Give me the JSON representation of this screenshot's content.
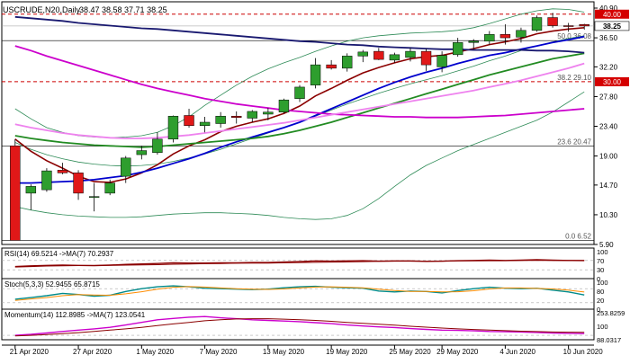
{
  "colors": {
    "bull": "#2e9e2e",
    "bear": "#e01818",
    "ma_fast": "#8b0000",
    "ma_blue": "#0000cd",
    "ma_green": "#228b22",
    "ma_navy": "#191970",
    "ma_magenta": "#cc00cc",
    "ma_violet": "#ee82ee",
    "bollinger": "#2e8b57",
    "level_line": "#cc0000",
    "fib_line": "#000000",
    "price_tag": "#d40000",
    "rsi": "#8b0000",
    "stoch_main": "#008b8b",
    "stoch_signal": "#ff8c00",
    "momentum": "#cc00cc",
    "momentum_ma": "#8b0000"
  },
  "chart_data": {
    "type": "candlestick",
    "title": "USCRUDE,N20,Daily",
    "ohlc_header": "38.47 38.58 37.71 38.25",
    "ylim": [
      5.9,
      41.3
    ],
    "y_ticks": [
      "40.90",
      "36.50",
      "32.20",
      "27.80",
      "23.40",
      "19.00",
      "14.70",
      "10.30",
      "5.90"
    ],
    "x_labels": [
      "21 Apr 2020",
      "27 Apr 2020",
      "1 May 2020",
      "7 May 2020",
      "13 May 2020",
      "19 May 2020",
      "25 May 2020",
      "29 May 2020",
      "4 Jun 2020",
      "10 Jun 2020"
    ],
    "x_label_bars": [
      0,
      4,
      8,
      12,
      16,
      20,
      24,
      27,
      31,
      35
    ],
    "candles": [
      {
        "o": 20.5,
        "h": 21.5,
        "l": 6.5,
        "c": 6.5
      },
      {
        "o": 13.5,
        "h": 14.8,
        "l": 11.0,
        "c": 14.5
      },
      {
        "o": 14.0,
        "h": 17.2,
        "l": 13.7,
        "c": 16.8
      },
      {
        "o": 16.9,
        "h": 18.0,
        "l": 16.3,
        "c": 16.5
      },
      {
        "o": 16.5,
        "h": 16.9,
        "l": 12.5,
        "c": 13.5
      },
      {
        "o": 13.0,
        "h": 15.0,
        "l": 10.8,
        "c": 13.0
      },
      {
        "o": 13.5,
        "h": 15.5,
        "l": 13.2,
        "c": 15.0
      },
      {
        "o": 16.0,
        "h": 19.0,
        "l": 15.0,
        "c": 18.7
      },
      {
        "o": 19.2,
        "h": 20.5,
        "l": 18.5,
        "c": 19.8
      },
      {
        "o": 19.5,
        "h": 22.5,
        "l": 19.2,
        "c": 21.5
      },
      {
        "o": 21.5,
        "h": 25.0,
        "l": 21.0,
        "c": 24.9
      },
      {
        "o": 25.0,
        "h": 26.0,
        "l": 23.2,
        "c": 23.5
      },
      {
        "o": 23.5,
        "h": 24.8,
        "l": 22.5,
        "c": 24.0
      },
      {
        "o": 23.8,
        "h": 25.5,
        "l": 23.2,
        "c": 24.9
      },
      {
        "o": 24.9,
        "h": 25.6,
        "l": 23.8,
        "c": 24.7
      },
      {
        "o": 24.6,
        "h": 25.8,
        "l": 24.0,
        "c": 25.6
      },
      {
        "o": 25.2,
        "h": 26.1,
        "l": 24.3,
        "c": 25.5
      },
      {
        "o": 25.5,
        "h": 27.5,
        "l": 25.3,
        "c": 27.3
      },
      {
        "o": 27.5,
        "h": 29.5,
        "l": 27.0,
        "c": 29.2
      },
      {
        "o": 29.5,
        "h": 33.5,
        "l": 29.0,
        "c": 32.5
      },
      {
        "o": 32.5,
        "h": 33.2,
        "l": 31.8,
        "c": 32.0
      },
      {
        "o": 32.0,
        "h": 34.2,
        "l": 31.5,
        "c": 33.8
      },
      {
        "o": 33.8,
        "h": 34.7,
        "l": 32.9,
        "c": 34.4
      },
      {
        "o": 34.5,
        "h": 35.0,
        "l": 33.2,
        "c": 33.3
      },
      {
        "o": 33.2,
        "h": 34.3,
        "l": 32.8,
        "c": 34.0
      },
      {
        "o": 33.6,
        "h": 35.0,
        "l": 33.0,
        "c": 34.5
      },
      {
        "o": 34.5,
        "h": 34.9,
        "l": 31.6,
        "c": 32.5
      },
      {
        "o": 32.2,
        "h": 34.5,
        "l": 31.4,
        "c": 33.9
      },
      {
        "o": 34.0,
        "h": 36.5,
        "l": 33.7,
        "c": 35.8
      },
      {
        "o": 35.8,
        "h": 36.3,
        "l": 34.8,
        "c": 36.0
      },
      {
        "o": 36.0,
        "h": 37.5,
        "l": 35.5,
        "c": 37.0
      },
      {
        "o": 37.0,
        "h": 38.5,
        "l": 35.5,
        "c": 36.5
      },
      {
        "o": 36.6,
        "h": 38.0,
        "l": 35.8,
        "c": 37.6
      },
      {
        "o": 37.6,
        "h": 39.8,
        "l": 37.4,
        "c": 39.5
      },
      {
        "o": 39.5,
        "h": 40.2,
        "l": 38.0,
        "c": 38.3
      },
      {
        "o": 38.3,
        "h": 38.7,
        "l": 37.4,
        "c": 38.2
      },
      {
        "o": 38.47,
        "h": 38.58,
        "l": 37.71,
        "c": 38.25
      }
    ],
    "moving_averages": [
      {
        "color": "ma_fast",
        "values": [
          21.5,
          19.7,
          18.3,
          17.2,
          16.0,
          15.2,
          15.1,
          15.6,
          16.5,
          17.7,
          19.3,
          20.5,
          21.4,
          22.6,
          23.4,
          24.0,
          24.5,
          25.3,
          26.4,
          27.9,
          29.0,
          30.2,
          31.3,
          32.1,
          32.8,
          33.4,
          33.7,
          33.9,
          34.4,
          34.9,
          35.5,
          35.9,
          36.4,
          37.1,
          37.5,
          37.8,
          38.0
        ]
      },
      {
        "color": "ma_blue",
        "values": [
          15.0,
          15.0,
          15.1,
          15.2,
          15.3,
          15.5,
          15.8,
          16.1,
          16.6,
          17.2,
          17.9,
          18.6,
          19.4,
          20.3,
          21.1,
          21.8,
          22.5,
          23.2,
          24.0,
          25.0,
          26.0,
          27.0,
          28.0,
          29.0,
          29.9,
          30.7,
          31.4,
          32.0,
          32.7,
          33.3,
          33.9,
          34.3,
          34.8,
          35.3,
          35.8,
          36.2,
          36.7
        ]
      },
      {
        "color": "ma_green",
        "values": [
          22.0,
          21.6,
          21.3,
          21.0,
          20.8,
          20.6,
          20.5,
          20.4,
          20.3,
          20.4,
          20.6,
          20.8,
          21.0,
          21.2,
          21.4,
          21.6,
          21.9,
          22.3,
          22.8,
          23.4,
          24.0,
          24.7,
          25.4,
          26.1,
          26.8,
          27.5,
          28.2,
          28.9,
          29.6,
          30.3,
          31.0,
          31.6,
          32.2,
          32.8,
          33.4,
          33.8,
          34.2
        ]
      },
      {
        "color": "ma_navy",
        "values": [
          39.6,
          39.4,
          39.2,
          39.0,
          38.7,
          38.5,
          38.3,
          38.1,
          37.9,
          37.8,
          37.6,
          37.4,
          37.2,
          37.0,
          36.8,
          36.6,
          36.4,
          36.2,
          36.0,
          35.9,
          35.7,
          35.5,
          35.4,
          35.2,
          35.1,
          35.0,
          34.9,
          34.8,
          34.8,
          34.7,
          34.7,
          34.7,
          34.7,
          34.6,
          34.6,
          34.5,
          34.3
        ]
      },
      {
        "color": "ma_magenta",
        "values": [
          35.3,
          34.6,
          33.8,
          33.1,
          32.4,
          31.7,
          31.0,
          30.3,
          29.6,
          29.0,
          28.5,
          28.0,
          27.5,
          27.1,
          26.7,
          26.4,
          26.1,
          25.8,
          25.6,
          25.4,
          25.2,
          25.1,
          25.0,
          24.9,
          24.8,
          24.8,
          24.7,
          24.7,
          24.7,
          24.8,
          24.9,
          25.0,
          25.2,
          25.4,
          25.6,
          25.8,
          26.0
        ]
      },
      {
        "color": "ma_violet",
        "values": [
          23.7,
          23.2,
          22.8,
          22.4,
          22.1,
          21.9,
          21.7,
          21.6,
          21.6,
          21.7,
          21.9,
          22.1,
          22.4,
          22.7,
          23.0,
          23.3,
          23.6,
          23.9,
          24.3,
          24.7,
          25.1,
          25.5,
          25.9,
          26.3,
          26.7,
          27.1,
          27.5,
          27.9,
          28.3,
          28.7,
          29.2,
          29.7,
          30.2,
          30.8,
          31.4,
          32.0,
          32.7
        ]
      }
    ],
    "bollinger": {
      "upper": [
        26.0,
        24.5,
        23.2,
        22.5,
        22.0,
        21.8,
        21.7,
        21.8,
        22.0,
        22.5,
        23.5,
        24.8,
        26.5,
        28.0,
        29.5,
        30.8,
        31.9,
        32.8,
        33.6,
        34.5,
        35.3,
        36.0,
        36.5,
        36.8,
        37.0,
        37.2,
        37.3,
        37.4,
        37.6,
        38.0,
        38.6,
        39.3,
        40.0,
        40.5,
        40.8,
        40.7,
        40.3
      ],
      "middle": [
        21.0,
        20.0,
        19.2,
        18.6,
        18.1,
        17.8,
        17.6,
        17.5,
        17.6,
        17.8,
        18.2,
        18.7,
        19.3,
        20.0,
        20.8,
        21.6,
        22.4,
        23.2,
        24.0,
        24.9,
        25.8,
        26.7,
        27.5,
        28.3,
        29.0,
        29.7,
        30.3,
        30.9,
        31.6,
        32.3,
        33.1,
        33.8,
        34.6,
        35.3,
        35.9,
        36.4,
        36.8
      ],
      "lower": [
        11.5,
        11.0,
        10.6,
        10.3,
        10.1,
        10.0,
        9.9,
        9.9,
        10.0,
        10.2,
        10.4,
        10.5,
        10.6,
        10.6,
        10.5,
        10.4,
        10.2,
        9.9,
        9.7,
        9.6,
        9.7,
        10.2,
        11.2,
        12.7,
        14.5,
        16.2,
        17.6,
        18.7,
        19.8,
        20.7,
        21.6,
        22.5,
        23.4,
        24.3,
        25.5,
        27.0,
        28.5
      ]
    },
    "levels": [
      {
        "name": "level-40",
        "value": 40.0,
        "style": "dashed",
        "label": "",
        "price_tag": "40.00"
      },
      {
        "name": "level-fib50",
        "value": 36.08,
        "style": "solid",
        "label": "50.0 36.08",
        "price_tag": ""
      },
      {
        "name": "level-30",
        "value": 30.0,
        "style": "dashed",
        "label": "38.2 29.10",
        "price_tag": "30.00"
      },
      {
        "name": "level-fib236",
        "value": 20.47,
        "style": "solid",
        "label": "23.6 20.47",
        "price_tag": ""
      },
      {
        "name": "level-fib0",
        "value": 6.52,
        "style": "solid",
        "label": "0.0 6.52",
        "price_tag": ""
      }
    ],
    "current_price": "38.25",
    "indicators": [
      {
        "name": "rsi",
        "label": "RSI(14) 69.5214  ->MA(7) 70.2937",
        "scale_labels": [
          "100",
          "70",
          "30",
          "0"
        ],
        "ylim": [
          0,
          100
        ],
        "guides": [
          70,
          30
        ],
        "series": [
          {
            "color": "rsi",
            "values": [
              44,
              47,
              49,
              50,
              49,
              48,
              50,
              53,
              55,
              57,
              60,
              59,
              59,
              60,
              60,
              61,
              61,
              63,
              65,
              68,
              67,
              68,
              69,
              67,
              68,
              68,
              66,
              67,
              69,
              70,
              71,
              70,
              71,
              73,
              71,
              70,
              69.5
            ]
          },
          {
            "color": "rsi",
            "values": [
              42,
              44,
              46,
              47,
              48,
              48,
              49,
              50,
              51,
              52,
              54,
              55,
              56,
              57,
              58,
              59,
              59,
              60,
              61,
              62,
              63,
              64,
              65,
              66,
              67,
              67,
              67,
              67,
              68,
              68,
              69,
              69,
              70,
              70,
              70,
              70,
              70.3
            ]
          }
        ]
      },
      {
        "name": "stochastic",
        "label": "Stoch(5,3,3) 52.9455 65.8715",
        "scale_labels": [
          "100",
          "80",
          "20",
          "0"
        ],
        "ylim": [
          0,
          100
        ],
        "guides": [
          80,
          20
        ],
        "series": [
          {
            "color": "stoch_main",
            "values": [
              35,
              42,
              50,
              60,
              55,
              48,
              52,
              68,
              80,
              88,
              92,
              88,
              82,
              80,
              78,
              76,
              78,
              84,
              88,
              90,
              86,
              84,
              82,
              70,
              66,
              70,
              68,
              62,
              72,
              80,
              86,
              82,
              80,
              82,
              74,
              66,
              52.9
            ]
          },
          {
            "color": "stoch_signal",
            "values": [
              30,
              36,
              42,
              50,
              55,
              53,
              52,
              58,
              67,
              78,
              86,
              89,
              87,
              83,
              80,
              78,
              77,
              79,
              83,
              87,
              88,
              86,
              84,
              78,
              72,
              68,
              68,
              66,
              67,
              71,
              79,
              83,
              83,
              81,
              79,
              74,
              65.9
            ]
          }
        ]
      },
      {
        "name": "momentum",
        "label": "Momentum(14) 112.8985  ->MA(7) 123.0541",
        "scale_labels": [
          "253.8259",
          "100",
          "88.0317"
        ],
        "ylim": [
          80,
          260
        ],
        "guides": [
          100
        ],
        "series": [
          {
            "color": "momentum",
            "values": [
              100,
              108,
              118,
              130,
              140,
              150,
              162,
              180,
              200,
              220,
              230,
              240,
              245,
              235,
              228,
              220,
              215,
              210,
              205,
              198,
              190,
              180,
              172,
              165,
              160,
              152,
              146,
              140,
              138,
              135,
              130,
              128,
              126,
              122,
              118,
              115,
              112.9
            ]
          },
          {
            "color": "momentum_ma",
            "values": [
              95,
              100,
              106,
              113,
              121,
              130,
              140,
              150,
              162,
              175,
              188,
              200,
              212,
              220,
              226,
              228,
              228,
              225,
              220,
              215,
              208,
              200,
              193,
              186,
              178,
              170,
              163,
              156,
              150,
              145,
              140,
              136,
              132,
              129,
              126,
              124,
              123.1
            ]
          }
        ]
      }
    ]
  }
}
